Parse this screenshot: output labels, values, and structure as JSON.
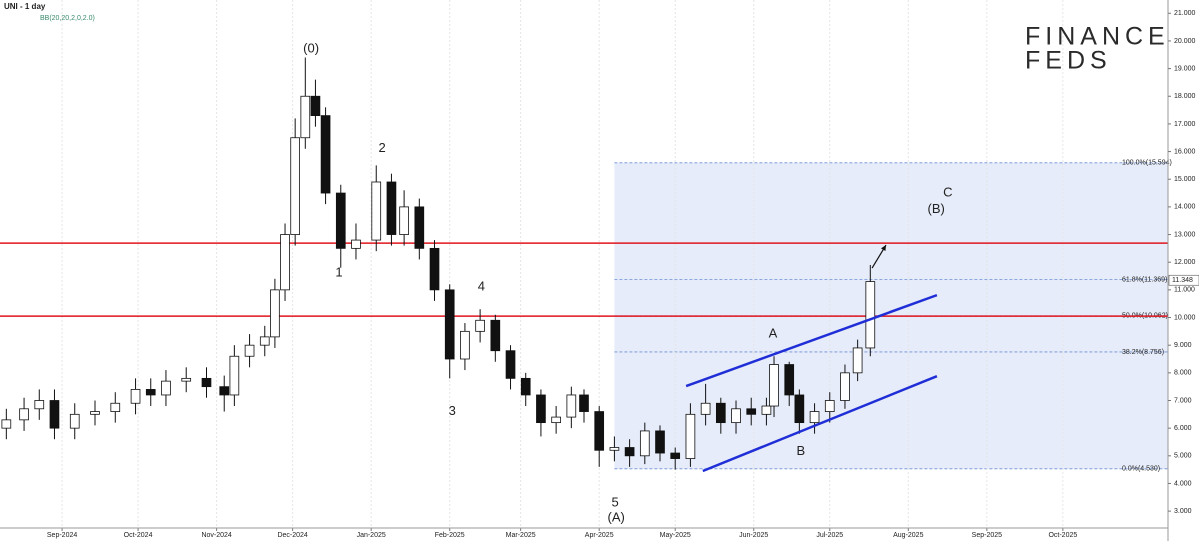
{
  "chart_data": {
    "type": "candlestick",
    "title": "UNI - 1 day",
    "subtitle": "BB(20,20,2,0,2.0)",
    "logo": [
      "FINANCE",
      "FEDS"
    ],
    "x": [
      9,
      16,
      22,
      28,
      36,
      44,
      52,
      60,
      66,
      72,
      80,
      88,
      95,
      99,
      105,
      111,
      115,
      119,
      123,
      127,
      131,
      135,
      141,
      147,
      155,
      161,
      166,
      172,
      178,
      184,
      190,
      196,
      202,
      208,
      214,
      220,
      226,
      232,
      237,
      243,
      249,
      255,
      261,
      267,
      273,
      279,
      285,
      291,
      297,
      303,
      309,
      312,
      318,
      322,
      328,
      334,
      340,
      345,
      350
    ],
    "open": [
      6.0,
      6.3,
      6.7,
      7.0,
      6.0,
      6.5,
      6.6,
      6.9,
      7.4,
      7.2,
      7.7,
      7.8,
      7.5,
      7.2,
      8.6,
      9.0,
      9.3,
      11.0,
      13.0,
      16.5,
      18.0,
      17.3,
      14.5,
      12.5,
      12.8,
      14.9,
      13.0,
      14.0,
      12.5,
      11.0,
      8.5,
      9.5,
      9.9,
      8.8,
      7.8,
      7.2,
      6.2,
      6.4,
      7.2,
      6.6,
      5.2,
      5.3,
      5.0,
      5.9,
      5.1,
      4.9,
      6.5,
      6.9,
      6.2,
      6.7,
      6.5,
      6.8,
      8.3,
      7.2,
      6.2,
      6.6,
      7.0,
      8.0,
      8.9
    ],
    "high": [
      6.7,
      7.1,
      7.4,
      7.4,
      6.9,
      7.0,
      7.3,
      7.8,
      7.8,
      8.1,
      8.2,
      8.2,
      7.9,
      9.0,
      9.4,
      9.7,
      11.4,
      13.4,
      17.2,
      19.4,
      18.6,
      17.6,
      14.8,
      13.4,
      15.5,
      15.2,
      14.6,
      14.3,
      12.8,
      11.2,
      9.8,
      10.3,
      10.1,
      9.0,
      8.0,
      7.4,
      6.8,
      7.5,
      7.4,
      6.8,
      5.7,
      5.6,
      6.2,
      6.1,
      5.3,
      6.9,
      7.6,
      7.1,
      7.0,
      7.1,
      7.1,
      8.6,
      8.4,
      7.4,
      6.9,
      7.3,
      8.3,
      9.2,
      11.9
    ],
    "low": [
      5.6,
      5.9,
      6.3,
      5.6,
      5.6,
      6.1,
      6.2,
      6.5,
      6.8,
      6.8,
      7.3,
      7.1,
      6.6,
      6.8,
      8.2,
      8.6,
      8.9,
      10.6,
      12.6,
      16.1,
      16.9,
      14.1,
      11.8,
      12.1,
      12.4,
      12.6,
      12.6,
      12.1,
      10.6,
      7.8,
      8.1,
      9.1,
      8.4,
      7.4,
      6.8,
      5.7,
      5.8,
      6.0,
      6.2,
      4.6,
      4.8,
      4.6,
      4.7,
      4.8,
      4.5,
      4.6,
      6.1,
      5.8,
      5.8,
      6.1,
      6.1,
      6.4,
      6.8,
      5.8,
      5.8,
      6.2,
      6.7,
      7.7,
      8.6
    ],
    "close": [
      6.3,
      6.7,
      7.0,
      6.0,
      6.5,
      6.6,
      6.9,
      7.4,
      7.2,
      7.7,
      7.8,
      7.5,
      7.2,
      8.6,
      9.0,
      9.3,
      11.0,
      13.0,
      16.5,
      18.0,
      17.3,
      14.5,
      12.5,
      12.8,
      14.9,
      13.0,
      14.0,
      12.5,
      11.0,
      8.5,
      9.5,
      9.9,
      8.8,
      7.8,
      7.2,
      6.2,
      6.4,
      7.2,
      6.6,
      5.2,
      5.3,
      5.0,
      5.9,
      5.1,
      4.9,
      6.5,
      6.9,
      6.2,
      6.7,
      6.5,
      6.8,
      8.3,
      7.2,
      6.2,
      6.6,
      7.0,
      8.0,
      8.9,
      11.3
    ],
    "last_price": {
      "value": 11.348,
      "label": "11.348"
    },
    "xlim": [
      6.5,
      467.5
    ],
    "ylim": [
      2.39,
      21.48
    ],
    "xticks": [
      {
        "value": 31,
        "label": "Sep-2024"
      },
      {
        "value": 61,
        "label": "Oct-2024"
      },
      {
        "value": 92,
        "label": "Nov-2024"
      },
      {
        "value": 122,
        "label": "Dec-2024"
      },
      {
        "value": 153,
        "label": "Jan-2025"
      },
      {
        "value": 184,
        "label": "Feb-2025"
      },
      {
        "value": 212,
        "label": "Mar-2025"
      },
      {
        "value": 243,
        "label": "Apr-2025"
      },
      {
        "value": 273,
        "label": "May-2025"
      },
      {
        "value": 304,
        "label": "Jun-2025"
      },
      {
        "value": 334,
        "label": "Jul-2025"
      },
      {
        "value": 365,
        "label": "Aug-2025"
      },
      {
        "value": 396,
        "label": "Sep-2025"
      },
      {
        "value": 426,
        "label": "Oct-2025"
      }
    ],
    "yticks": [
      {
        "value": 3,
        "label": "3.000"
      },
      {
        "value": 4,
        "label": "4.000"
      },
      {
        "value": 5,
        "label": "5.000"
      },
      {
        "value": 6,
        "label": "6.000"
      },
      {
        "value": 7,
        "label": "7.000"
      },
      {
        "value": 8,
        "label": "8.000"
      },
      {
        "value": 9,
        "label": "9.000"
      },
      {
        "value": 10,
        "label": "10.000"
      },
      {
        "value": 11,
        "label": "11.000"
      },
      {
        "value": 12,
        "label": "12.000"
      },
      {
        "value": 13,
        "label": "13.000"
      },
      {
        "value": 14,
        "label": "14.000"
      },
      {
        "value": 15,
        "label": "15.000"
      },
      {
        "value": 16,
        "label": "16.000"
      },
      {
        "value": 17,
        "label": "17.000"
      },
      {
        "value": 18,
        "label": "18.000"
      },
      {
        "value": 19,
        "label": "19.000"
      },
      {
        "value": 20,
        "label": "20.000"
      },
      {
        "value": 21,
        "label": "21.000"
      }
    ],
    "horizontal_lines": [
      {
        "value": 12.69,
        "color": "#e0141e"
      },
      {
        "value": 10.05,
        "color": "#e0141e"
      }
    ],
    "fib_box": {
      "x": [
        249,
        467.5
      ],
      "color": "#dde5f7"
    },
    "fib_levels": [
      {
        "value": 15.594,
        "label": "100.0%(15.594)"
      },
      {
        "value": 11.369,
        "label": "61.8%(11.369)"
      },
      {
        "value": 10.062,
        "label": "50.0%(10.062)"
      },
      {
        "value": 8.756,
        "label": "38.2%(8.756)"
      },
      {
        "value": 4.53,
        "label": "0.0%(4.530)"
      }
    ],
    "channel": [
      {
        "x": [
          277.3,
          376.3
        ],
        "y": [
          7.52,
          10.81
        ],
        "color": "#1f2ed6"
      },
      {
        "x": [
          283.9,
          376.3
        ],
        "y": [
          4.45,
          7.88
        ],
        "color": "#1f2ed6"
      }
    ],
    "arrow": {
      "x": [
        350.7,
        356.2
      ],
      "y": [
        11.79,
        12.62
      ]
    },
    "annotations": [
      {
        "text": "(0)",
        "x": 129.3,
        "y": 19.7
      },
      {
        "text": "1",
        "x": 140.3,
        "y": 11.6
      },
      {
        "text": "2",
        "x": 157.3,
        "y": 16.1
      },
      {
        "text": "3",
        "x": 185,
        "y": 6.6
      },
      {
        "text": "4",
        "x": 196.5,
        "y": 11.1
      },
      {
        "text": "5",
        "x": 249.3,
        "y": 3.3
      },
      {
        "text": "(A)",
        "x": 249.7,
        "y": 2.75
      },
      {
        "text": "A",
        "x": 311.6,
        "y": 9.4
      },
      {
        "text": "B",
        "x": 322.6,
        "y": 5.15
      },
      {
        "text": "C",
        "x": 380.6,
        "y": 14.5
      },
      {
        "text": "(B)",
        "x": 376,
        "y": 13.9
      }
    ]
  }
}
